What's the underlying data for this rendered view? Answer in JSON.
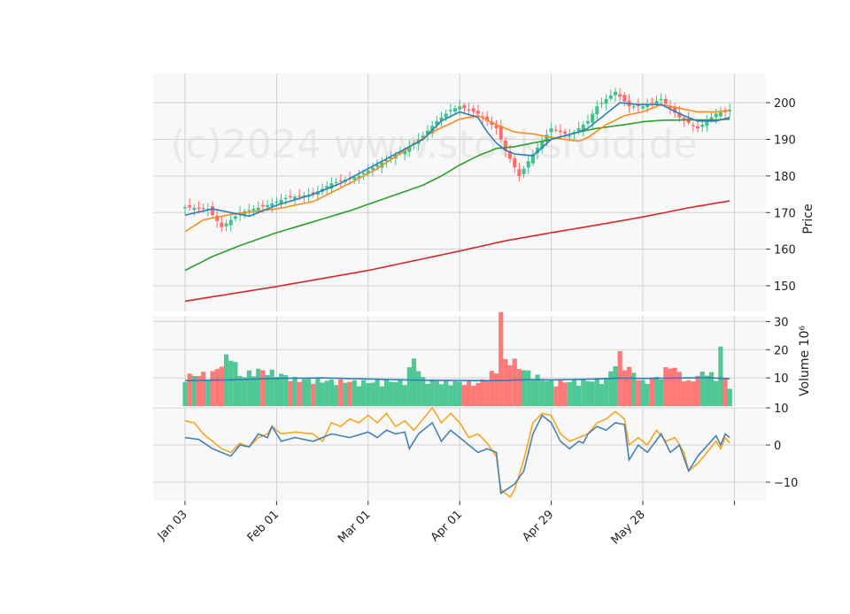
{
  "watermark": "(c)2024 www.stocksroid.de",
  "colors": {
    "up": "#3cc28a",
    "down": "#ff6a6a",
    "ma_short": "#2f7fb5",
    "ma_mid": "#ff8c1a",
    "ma_long": "#2ca02c",
    "ma_xlong": "#d62728",
    "vol_avg": "#2f7fb5",
    "osc1": "#4682b4",
    "osc2": "#f5a623",
    "panel_bg": "#f8f8f8",
    "grid": "#d0d0d0"
  },
  "chart_data": {
    "type": "candlestick",
    "price_axis": {
      "label": "Price",
      "ticks": [
        "150",
        "160",
        "170",
        "180",
        "190",
        "200"
      ],
      "tick_values": [
        150,
        160,
        170,
        180,
        190,
        200
      ],
      "ylim": [
        143,
        208
      ]
    },
    "volume_axis": {
      "label": "Volume  10⁶",
      "ticks": [
        "10",
        "20",
        "30"
      ],
      "tick_values": [
        10,
        20,
        30
      ],
      "ylim": [
        0,
        32
      ]
    },
    "osc_axis": {
      "ticks": [
        "−10",
        "0",
        "10"
      ],
      "tick_values": [
        -10,
        0,
        10
      ],
      "ylim": [
        -15,
        10
      ]
    },
    "x_ticks": [
      {
        "label": "Jan 03",
        "index": 0
      },
      {
        "label": "Feb 01",
        "index": 20
      },
      {
        "label": "Mar 01",
        "index": 40
      },
      {
        "label": "Apr 01",
        "index": 60
      },
      {
        "label": "Apr 29",
        "index": 80
      },
      {
        "label": "May 28",
        "index": 100
      },
      {
        "label": "",
        "index": 120
      }
    ],
    "n_bars": 120,
    "anchors": {
      "close": [
        [
          0,
          171.5
        ],
        [
          5,
          171
        ],
        [
          8,
          166
        ],
        [
          12,
          170
        ],
        [
          18,
          172
        ],
        [
          22,
          174
        ],
        [
          28,
          175
        ],
        [
          32,
          178
        ],
        [
          38,
          180
        ],
        [
          42,
          183
        ],
        [
          48,
          187
        ],
        [
          52,
          191
        ],
        [
          55,
          195
        ],
        [
          58,
          198
        ],
        [
          60,
          199
        ],
        [
          64,
          197
        ],
        [
          68,
          193
        ],
        [
          70,
          187
        ],
        [
          73,
          180
        ],
        [
          76,
          186
        ],
        [
          80,
          193
        ],
        [
          84,
          191
        ],
        [
          88,
          195
        ],
        [
          90,
          199
        ],
        [
          94,
          203
        ],
        [
          97,
          199
        ],
        [
          100,
          199
        ],
        [
          104,
          201
        ],
        [
          108,
          196
        ],
        [
          112,
          193
        ],
        [
          116,
          197
        ],
        [
          119,
          198
        ]
      ],
      "ma_short": [
        [
          0,
          169.3
        ],
        [
          6,
          171
        ],
        [
          10,
          170
        ],
        [
          14,
          169
        ],
        [
          20,
          172
        ],
        [
          28,
          175
        ],
        [
          34,
          178
        ],
        [
          40,
          182
        ],
        [
          46,
          186
        ],
        [
          52,
          190
        ],
        [
          56,
          195
        ],
        [
          60,
          197.5
        ],
        [
          64,
          196
        ],
        [
          66,
          192
        ],
        [
          68,
          189
        ],
        [
          70,
          187
        ],
        [
          72,
          186
        ],
        [
          76,
          185.5
        ],
        [
          80,
          190
        ],
        [
          86,
          192
        ],
        [
          88,
          193
        ],
        [
          92,
          197
        ],
        [
          95,
          200
        ],
        [
          99,
          199.5
        ],
        [
          104,
          199.5
        ],
        [
          108,
          197
        ],
        [
          112,
          195
        ],
        [
          116,
          195
        ],
        [
          119,
          196
        ]
      ],
      "ma_mid": [
        [
          0,
          164.8
        ],
        [
          4,
          168
        ],
        [
          10,
          169.5
        ],
        [
          20,
          171
        ],
        [
          28,
          173
        ],
        [
          36,
          178
        ],
        [
          42,
          182
        ],
        [
          48,
          187
        ],
        [
          54,
          192
        ],
        [
          60,
          195.5
        ],
        [
          64,
          196.5
        ],
        [
          68,
          194
        ],
        [
          72,
          192
        ],
        [
          76,
          191.5
        ],
        [
          80,
          190.5
        ],
        [
          86,
          189.5
        ],
        [
          88,
          190.5
        ],
        [
          92,
          194
        ],
        [
          96,
          196.5
        ],
        [
          100,
          197.5
        ],
        [
          104,
          199.5
        ],
        [
          108,
          198.5
        ],
        [
          112,
          197.5
        ],
        [
          116,
          197.5
        ],
        [
          119,
          198
        ]
      ],
      "ma_long": [
        [
          0,
          154.2
        ],
        [
          6,
          158
        ],
        [
          12,
          161
        ],
        [
          20,
          164.5
        ],
        [
          28,
          167.5
        ],
        [
          36,
          170.5
        ],
        [
          44,
          174
        ],
        [
          52,
          177.5
        ],
        [
          56,
          180
        ],
        [
          60,
          183
        ],
        [
          64,
          185.5
        ],
        [
          68,
          187.5
        ],
        [
          72,
          188
        ],
        [
          76,
          189
        ],
        [
          80,
          190
        ],
        [
          86,
          192
        ],
        [
          90,
          193
        ],
        [
          96,
          194
        ],
        [
          100,
          194.8
        ],
        [
          104,
          195.2
        ],
        [
          110,
          195.3
        ],
        [
          116,
          195.3
        ],
        [
          119,
          195.5
        ]
      ],
      "ma_xlong": [
        [
          0,
          145.8
        ],
        [
          20,
          149.8
        ],
        [
          40,
          154.2
        ],
        [
          60,
          159.5
        ],
        [
          70,
          162.3
        ],
        [
          80,
          164.5
        ],
        [
          90,
          166.6
        ],
        [
          100,
          168.8
        ],
        [
          110,
          171.3
        ],
        [
          119,
          173.2
        ]
      ],
      "volume": [
        [
          0,
          10
        ],
        [
          6,
          11
        ],
        [
          8,
          14
        ],
        [
          10,
          18
        ],
        [
          12,
          10
        ],
        [
          16,
          12
        ],
        [
          20,
          11
        ],
        [
          24,
          9
        ],
        [
          30,
          8.5
        ],
        [
          40,
          8
        ],
        [
          48,
          8.5
        ],
        [
          50,
          16
        ],
        [
          52,
          9
        ],
        [
          56,
          8
        ],
        [
          60,
          8
        ],
        [
          64,
          7.5
        ],
        [
          68,
          12
        ],
        [
          69,
          31
        ],
        [
          70,
          15
        ],
        [
          71,
          16
        ],
        [
          74,
          12
        ],
        [
          78,
          9
        ],
        [
          80,
          8
        ],
        [
          88,
          8.5
        ],
        [
          92,
          9
        ],
        [
          95,
          17
        ],
        [
          96,
          14
        ],
        [
          100,
          8
        ],
        [
          104,
          10
        ],
        [
          106,
          14
        ],
        [
          110,
          8
        ],
        [
          114,
          12
        ],
        [
          116,
          9
        ],
        [
          117,
          20
        ],
        [
          118,
          9
        ],
        [
          119,
          7
        ]
      ],
      "vol_avg": [
        [
          0,
          9
        ],
        [
          10,
          9.3
        ],
        [
          20,
          9.8
        ],
        [
          30,
          10
        ],
        [
          40,
          9.6
        ],
        [
          50,
          9.2
        ],
        [
          60,
          9.1
        ],
        [
          65,
          9
        ],
        [
          70,
          9.1
        ],
        [
          75,
          9.4
        ],
        [
          80,
          9.3
        ],
        [
          90,
          9.6
        ],
        [
          95,
          9.9
        ],
        [
          100,
          9.8
        ],
        [
          110,
          10
        ],
        [
          115,
          10
        ],
        [
          119,
          9.7
        ]
      ],
      "osc1": [
        [
          0,
          2
        ],
        [
          3,
          1.5
        ],
        [
          6,
          -1
        ],
        [
          10,
          -3
        ],
        [
          12,
          0
        ],
        [
          14,
          -0.5
        ],
        [
          16,
          3
        ],
        [
          18,
          2
        ],
        [
          19,
          5
        ],
        [
          21,
          1
        ],
        [
          24,
          2
        ],
        [
          28,
          1
        ],
        [
          32,
          3
        ],
        [
          36,
          2
        ],
        [
          40,
          3.5
        ],
        [
          42,
          2
        ],
        [
          44,
          4
        ],
        [
          46,
          3
        ],
        [
          48,
          3.5
        ],
        [
          49,
          -1
        ],
        [
          51,
          3
        ],
        [
          54,
          6
        ],
        [
          56,
          1
        ],
        [
          58,
          4
        ],
        [
          60,
          2
        ],
        [
          62,
          0
        ],
        [
          64,
          -2
        ],
        [
          66,
          -1
        ],
        [
          68,
          -2
        ],
        [
          69,
          -13
        ],
        [
          72,
          -10.5
        ],
        [
          74,
          -7
        ],
        [
          76,
          3
        ],
        [
          78,
          8
        ],
        [
          80,
          6
        ],
        [
          82,
          1
        ],
        [
          84,
          -1
        ],
        [
          86,
          1
        ],
        [
          87,
          0.5
        ],
        [
          88,
          3
        ],
        [
          90,
          5
        ],
        [
          92,
          4
        ],
        [
          94,
          6
        ],
        [
          96,
          5.5
        ],
        [
          97,
          -4
        ],
        [
          99,
          0
        ],
        [
          101,
          -2
        ],
        [
          104,
          3
        ],
        [
          106,
          -2
        ],
        [
          108,
          0
        ],
        [
          110,
          -7
        ],
        [
          112,
          -3
        ],
        [
          116,
          2.5
        ],
        [
          117,
          0
        ],
        [
          118,
          3
        ],
        [
          119,
          2
        ]
      ],
      "osc2": [
        [
          0,
          6.5
        ],
        [
          2,
          6
        ],
        [
          4,
          3
        ],
        [
          6,
          1
        ],
        [
          8,
          -1
        ],
        [
          10,
          -2
        ],
        [
          12,
          0.5
        ],
        [
          14,
          -0.5
        ],
        [
          16,
          2
        ],
        [
          18,
          3
        ],
        [
          19,
          5
        ],
        [
          21,
          3
        ],
        [
          24,
          3.5
        ],
        [
          28,
          3
        ],
        [
          30,
          1
        ],
        [
          32,
          6
        ],
        [
          34,
          5
        ],
        [
          36,
          7
        ],
        [
          38,
          6
        ],
        [
          40,
          8
        ],
        [
          42,
          6
        ],
        [
          44,
          8.5
        ],
        [
          46,
          5
        ],
        [
          48,
          6.5
        ],
        [
          50,
          4
        ],
        [
          52,
          7
        ],
        [
          54,
          10
        ],
        [
          56,
          6
        ],
        [
          58,
          8.5
        ],
        [
          60,
          6
        ],
        [
          62,
          2
        ],
        [
          64,
          3
        ],
        [
          66,
          0.5
        ],
        [
          68,
          -3
        ],
        [
          69,
          -12
        ],
        [
          71,
          -14
        ],
        [
          72,
          -12
        ],
        [
          74,
          -4
        ],
        [
          76,
          6
        ],
        [
          78,
          8.5
        ],
        [
          80,
          8
        ],
        [
          82,
          3
        ],
        [
          84,
          1
        ],
        [
          86,
          2
        ],
        [
          88,
          3
        ],
        [
          90,
          6
        ],
        [
          92,
          7
        ],
        [
          94,
          9
        ],
        [
          96,
          7
        ],
        [
          97,
          0
        ],
        [
          99,
          2
        ],
        [
          101,
          0
        ],
        [
          103,
          4
        ],
        [
          105,
          1
        ],
        [
          107,
          2
        ],
        [
          109,
          -2
        ],
        [
          110,
          -7
        ],
        [
          112,
          -5
        ],
        [
          114,
          -2
        ],
        [
          116,
          1
        ],
        [
          117,
          -1
        ],
        [
          118,
          2
        ],
        [
          119,
          0.5
        ]
      ]
    }
  }
}
